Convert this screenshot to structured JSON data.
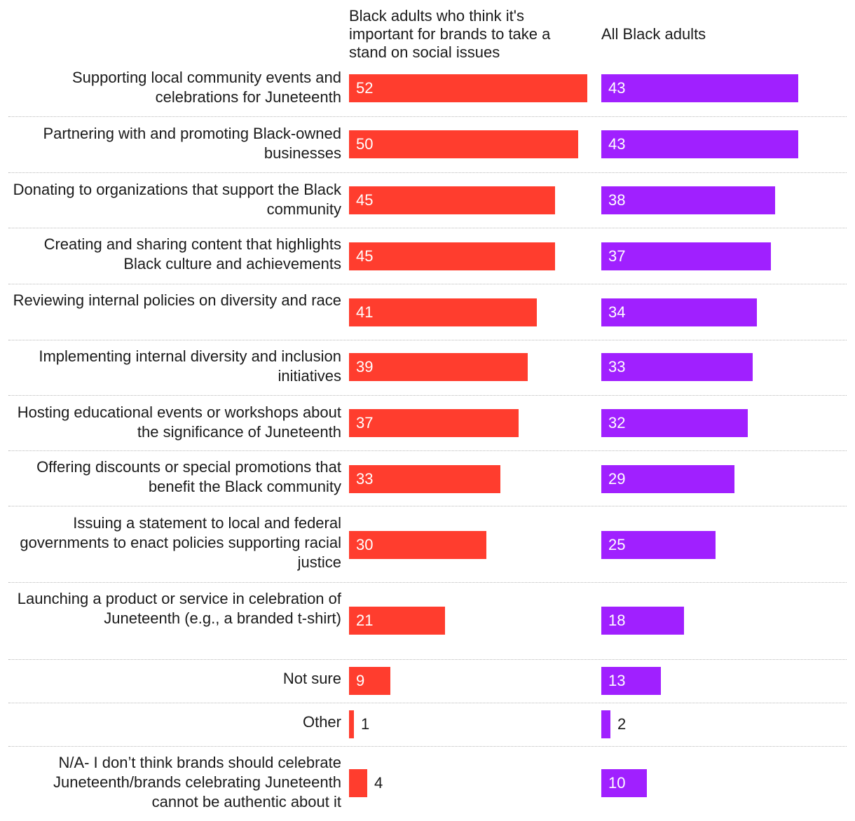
{
  "chart_data": {
    "type": "bar",
    "orientation": "horizontal",
    "title": "",
    "xlabel": "",
    "ylabel": "",
    "xlim": [
      0,
      52
    ],
    "legend": "column-headers",
    "colors": {
      "series_a": "#ff3d2e",
      "series_b": "#a020ff"
    },
    "categories": [
      "Supporting local community events and celebrations for Juneteenth",
      "Partnering with and promoting Black-owned businesses",
      "Donating to organizations that support the Black community",
      "Creating and sharing content that highlights Black culture and achievements",
      "Reviewing internal policies on diversity and race",
      "Implementing internal diversity and inclusion initiatives",
      "Hosting educational events or workshops about the significance of Juneteenth",
      "Offering discounts or special promotions that benefit the Black community",
      "Issuing a statement to local and federal governments to enact policies supporting racial justice",
      "Launching a product or service in celebration of Juneteenth (e.g., a branded t-shirt)",
      "Not sure",
      "Other",
      "N/A- I don’t think brands should celebrate Juneteenth/brands celebrating Juneteenth cannot be authentic about it"
    ],
    "series": [
      {
        "name": "Black adults who think it's important for brands to take a stand on social issues",
        "values": [
          52,
          50,
          45,
          45,
          41,
          39,
          37,
          33,
          30,
          21,
          9,
          1,
          4
        ]
      },
      {
        "name": "All Black adults",
        "values": [
          43,
          43,
          38,
          37,
          34,
          33,
          32,
          29,
          25,
          18,
          13,
          2,
          10
        ]
      }
    ]
  }
}
